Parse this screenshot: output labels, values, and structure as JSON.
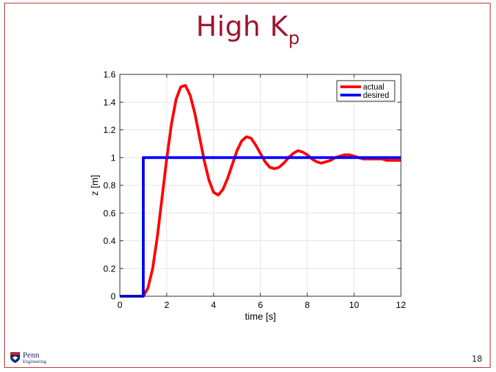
{
  "slide": {
    "title_main": "High K",
    "title_sub": "p",
    "page_number": "18",
    "logo_penn": "Penn",
    "logo_eng": "Engineering",
    "accent_color": "#a0152f"
  },
  "chart_data": {
    "type": "line",
    "xlabel": "time [s]",
    "ylabel": "z [m]",
    "xlim": [
      0,
      12
    ],
    "ylim": [
      0,
      1.6
    ],
    "xticks": [
      0,
      2,
      4,
      6,
      8,
      10,
      12
    ],
    "yticks": [
      0,
      0.2,
      0.4,
      0.6,
      0.8,
      1,
      1.2,
      1.4,
      1.6
    ],
    "grid": true,
    "legend_position": "top-right",
    "series": [
      {
        "name": "actual",
        "color": "#ff0000",
        "x": [
          0,
          1,
          1.2,
          1.4,
          1.6,
          1.8,
          2,
          2.2,
          2.4,
          2.6,
          2.8,
          3,
          3.2,
          3.4,
          3.6,
          3.8,
          4,
          4.2,
          4.4,
          4.6,
          4.8,
          5,
          5.2,
          5.4,
          5.6,
          5.8,
          6,
          6.2,
          6.4,
          6.6,
          6.8,
          7,
          7.2,
          7.4,
          7.6,
          7.8,
          8,
          8.2,
          8.4,
          8.6,
          8.8,
          9,
          9.2,
          9.4,
          9.6,
          9.8,
          10,
          10.2,
          10.4,
          10.6,
          10.8,
          11,
          11.2,
          11.4,
          11.6,
          11.8,
          12
        ],
        "y": [
          0,
          0,
          0.06,
          0.2,
          0.43,
          0.71,
          0.99,
          1.24,
          1.42,
          1.51,
          1.52,
          1.45,
          1.32,
          1.15,
          0.98,
          0.84,
          0.75,
          0.73,
          0.77,
          0.85,
          0.95,
          1.05,
          1.12,
          1.15,
          1.14,
          1.09,
          1.03,
          0.97,
          0.93,
          0.92,
          0.93,
          0.96,
          1.0,
          1.03,
          1.05,
          1.04,
          1.02,
          0.99,
          0.97,
          0.96,
          0.97,
          0.98,
          1.0,
          1.01,
          1.02,
          1.02,
          1.01,
          1.0,
          0.99,
          0.99,
          0.99,
          0.99,
          0.99,
          0.98,
          0.98,
          0.98,
          0.98
        ]
      },
      {
        "name": "desired",
        "color": "#0000ff",
        "x": [
          0,
          1,
          1,
          12
        ],
        "y": [
          0,
          0,
          1,
          1
        ]
      }
    ]
  }
}
